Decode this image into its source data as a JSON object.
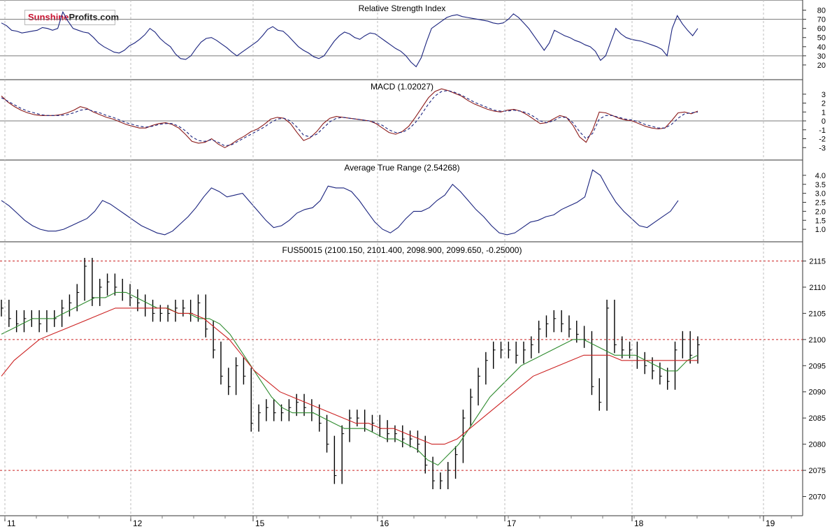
{
  "logo": {
    "part1": "Sunshine",
    "part2": "Profits.com"
  },
  "colors": {
    "rsi": "#1a237e",
    "atr": "#1a237e",
    "macd": "#8b1a1a",
    "macd_signal": "#1a237e",
    "price": "#000000",
    "ma_fast": "#2e8b2e",
    "ma_slow": "#cc2222",
    "level_line": "#cc2222",
    "grid": "#bdbdbd",
    "ref_line": "#7a7a7a"
  },
  "x_axis": {
    "labels": [
      "11",
      "12",
      "15",
      "16",
      "17",
      "18",
      "19"
    ]
  },
  "chart_data": [
    {
      "type": "line",
      "title": "Relative Strength Index",
      "ylim": [
        10,
        85
      ],
      "ticks": [
        80,
        70,
        60,
        50,
        40,
        30,
        20
      ],
      "reference_lines": [
        70,
        30
      ],
      "series": [
        {
          "values": [
            66,
            63,
            58,
            57,
            55,
            56,
            57,
            58,
            61,
            60,
            58,
            60,
            78,
            68,
            60,
            58,
            56,
            55,
            50,
            44,
            40,
            37,
            34,
            33,
            36,
            41,
            44,
            48,
            53,
            60,
            56,
            49,
            44,
            40,
            32,
            27,
            26,
            30,
            38,
            45,
            49,
            50,
            47,
            43,
            39,
            34,
            30,
            34,
            38,
            42,
            46,
            52,
            59,
            62,
            58,
            57,
            52,
            46,
            40,
            36,
            33,
            29,
            27,
            30,
            38,
            46,
            52,
            56,
            54,
            50,
            48,
            52,
            55,
            54,
            50,
            46,
            42,
            38,
            35,
            30,
            23,
            18,
            28,
            45,
            60,
            64,
            68,
            72,
            74,
            75,
            73,
            72,
            71,
            70,
            69,
            68,
            66,
            65,
            66,
            70,
            76,
            72,
            66,
            60,
            52,
            44,
            36,
            44,
            58,
            55,
            52,
            50,
            47,
            45,
            42,
            40,
            35,
            25,
            30,
            45,
            60,
            54,
            50,
            48,
            47,
            46,
            44,
            42,
            40,
            37,
            30,
            60,
            74,
            65,
            58,
            52,
            60
          ]
        }
      ]
    },
    {
      "type": "line",
      "title": "MACD (1.02027)",
      "ylim": [
        -4,
        4
      ],
      "ticks": [
        3,
        2,
        1,
        0,
        -1,
        -2,
        -3
      ],
      "reference_lines": [
        0
      ],
      "series": [
        {
          "values": [
            2.8,
            2.1,
            1.6,
            1.2,
            0.9,
            0.7,
            0.6,
            0.6,
            0.6,
            0.7,
            0.9,
            1.2,
            1.6,
            1.4,
            1.0,
            0.7,
            0.4,
            0.2,
            -0.1,
            -0.4,
            -0.6,
            -0.8,
            -0.8,
            -0.5,
            -0.3,
            -0.2,
            -0.4,
            -0.8,
            -1.5,
            -2.3,
            -2.5,
            -2.4,
            -2.0,
            -2.6,
            -3.0,
            -2.6,
            -2.1,
            -1.7,
            -1.2,
            -0.9,
            -0.4,
            0.2,
            0.4,
            0.3,
            -0.3,
            -1.3,
            -2.2,
            -1.9,
            -1.2,
            -0.3,
            0.3,
            0.5,
            0.4,
            0.3,
            0.2,
            0.1,
            0.0,
            -0.3,
            -0.8,
            -1.3,
            -1.5,
            -1.2,
            -0.6,
            0.4,
            1.5,
            2.6,
            3.3,
            3.6,
            3.4,
            3.1,
            2.8,
            2.3,
            1.9,
            1.6,
            1.3,
            1.1,
            1.0,
            1.2,
            1.3,
            1.1,
            0.7,
            0.2,
            -0.3,
            -0.2,
            0.2,
            0.6,
            0.4,
            -0.5,
            -1.8,
            -2.4,
            -1.0,
            1.0,
            0.9,
            0.6,
            0.3,
            0.1,
            0.0,
            -0.3,
            -0.6,
            -0.8,
            -0.9,
            -0.8,
            0.0,
            0.9,
            1.0,
            0.8,
            1.1
          ]
        },
        {
          "values": [
            2.6,
            2.2,
            1.8,
            1.4,
            1.1,
            0.9,
            0.7,
            0.6,
            0.6,
            0.6,
            0.7,
            0.9,
            1.2,
            1.3,
            1.1,
            0.9,
            0.6,
            0.4,
            0.1,
            -0.2,
            -0.4,
            -0.6,
            -0.7,
            -0.6,
            -0.4,
            -0.3,
            -0.3,
            -0.6,
            -1.1,
            -1.8,
            -2.2,
            -2.3,
            -2.1,
            -2.4,
            -2.8,
            -2.7,
            -2.3,
            -1.9,
            -1.5,
            -1.1,
            -0.7,
            -0.2,
            0.2,
            0.3,
            0.0,
            -0.7,
            -1.6,
            -1.8,
            -1.5,
            -0.8,
            -0.1,
            0.3,
            0.4,
            0.3,
            0.2,
            0.1,
            0.0,
            -0.2,
            -0.5,
            -1.0,
            -1.3,
            -1.3,
            -0.9,
            -0.2,
            0.8,
            1.9,
            2.8,
            3.3,
            3.4,
            3.2,
            2.9,
            2.5,
            2.1,
            1.8,
            1.5,
            1.2,
            1.1,
            1.1,
            1.2,
            1.1,
            0.9,
            0.5,
            0.0,
            -0.2,
            0.0,
            0.4,
            0.4,
            -0.2,
            -1.2,
            -2.0,
            -1.4,
            0.2,
            0.6,
            0.6,
            0.4,
            0.2,
            0.1,
            -0.1,
            -0.4,
            -0.6,
            -0.8,
            -0.8,
            -0.4,
            0.3,
            0.8,
            0.9,
            1.0
          ]
        }
      ]
    },
    {
      "type": "line",
      "title": "Average True Range (2.54268)",
      "ylim": [
        0.5,
        4.5
      ],
      "ticks": [
        4.0,
        3.5,
        3.0,
        2.5,
        2.0,
        1.5,
        1.0
      ],
      "series": [
        {
          "values": [
            2.6,
            2.3,
            1.9,
            1.5,
            1.2,
            1.0,
            0.9,
            0.9,
            1.0,
            1.2,
            1.4,
            1.6,
            2.0,
            2.6,
            2.4,
            2.1,
            1.8,
            1.5,
            1.2,
            1.0,
            0.8,
            0.7,
            0.9,
            1.3,
            1.7,
            2.2,
            2.8,
            3.3,
            3.1,
            2.8,
            2.9,
            3.0,
            2.5,
            2.0,
            1.5,
            1.1,
            1.2,
            1.5,
            1.9,
            2.1,
            2.2,
            2.6,
            3.4,
            3.3,
            3.3,
            3.1,
            2.6,
            2.0,
            1.4,
            1.0,
            0.8,
            1.1,
            1.6,
            2.0,
            2.0,
            2.2,
            2.6,
            2.9,
            3.5,
            3.1,
            2.6,
            2.1,
            1.7,
            1.2,
            0.8,
            0.7,
            0.8,
            1.1,
            1.4,
            1.5,
            1.7,
            1.8,
            2.1,
            2.3,
            2.5,
            2.8,
            4.3,
            4.0,
            3.2,
            2.5,
            2.0,
            1.6,
            1.2,
            1.1,
            1.4,
            1.7,
            2.0,
            2.6
          ]
        }
      ]
    },
    {
      "type": "line",
      "title": "FUS50015 (2100.150, 2101.400, 2098.900, 2099.650, -0.25000)",
      "ylim": [
        2067,
        2116
      ],
      "ticks": [
        2115,
        2110,
        2105,
        2100,
        2095,
        2090,
        2085,
        2080,
        2075,
        2070
      ],
      "reference_lines": [
        2115,
        2100,
        2075
      ],
      "series": [
        {
          "name": "price",
          "values": [
            2106,
            2104,
            2103,
            2104,
            2104,
            2103,
            2104,
            2104,
            2106,
            2107,
            2109,
            2114,
            2108,
            2110,
            2111,
            2110,
            2109,
            2108,
            2107,
            2106,
            2105,
            2105,
            2105,
            2106,
            2106,
            2105,
            2107,
            2102,
            2098,
            2093,
            2091,
            2095,
            2093,
            2084,
            2086,
            2087,
            2086,
            2086,
            2087,
            2088,
            2087,
            2086,
            2084,
            2080,
            2074,
            2082,
            2085,
            2085,
            2084,
            2084,
            2083,
            2082,
            2082,
            2081,
            2081,
            2080,
            2076,
            2073,
            2073,
            2075,
            2078,
            2085,
            2089,
            2093,
            2096,
            2098,
            2098,
            2098,
            2097,
            2098,
            2099,
            2102,
            2103,
            2104,
            2103,
            2102,
            2101,
            2100,
            2091,
            2088,
            2106,
            2099,
            2098,
            2098,
            2096,
            2095,
            2094,
            2093,
            2092,
            2098,
            2100,
            2097,
            2099
          ]
        },
        {
          "name": "ma_fast",
          "values": [
            2101,
            2102,
            2103,
            2104,
            2104,
            2104,
            2105,
            2106,
            2107,
            2108,
            2108,
            2109,
            2109,
            2108,
            2107,
            2106,
            2106,
            2105,
            2105,
            2104,
            2104,
            2103,
            2101,
            2098,
            2095,
            2092,
            2089,
            2087,
            2086,
            2086,
            2086,
            2085,
            2084,
            2083,
            2083,
            2083,
            2082,
            2081,
            2081,
            2080,
            2079,
            2077,
            2076,
            2078,
            2080,
            2083,
            2086,
            2089,
            2091,
            2093,
            2095,
            2096,
            2097,
            2098,
            2099,
            2100,
            2100,
            2099,
            2098,
            2097,
            2097,
            2097,
            2096,
            2095,
            2094,
            2094,
            2096,
            2097
          ]
        },
        {
          "name": "ma_slow",
          "values": [
            2093,
            2096,
            2098,
            2100,
            2101,
            2102,
            2103,
            2104,
            2105,
            2106,
            2106,
            2106,
            2106,
            2106,
            2105,
            2105,
            2104,
            2102,
            2100,
            2097,
            2094,
            2092,
            2090,
            2089,
            2088,
            2087,
            2086,
            2085,
            2084,
            2084,
            2083,
            2083,
            2082,
            2081,
            2080,
            2080,
            2081,
            2083,
            2085,
            2087,
            2089,
            2091,
            2093,
            2094,
            2095,
            2096,
            2097,
            2097,
            2097,
            2096,
            2096,
            2096,
            2096,
            2096,
            2096,
            2096
          ]
        }
      ]
    }
  ]
}
